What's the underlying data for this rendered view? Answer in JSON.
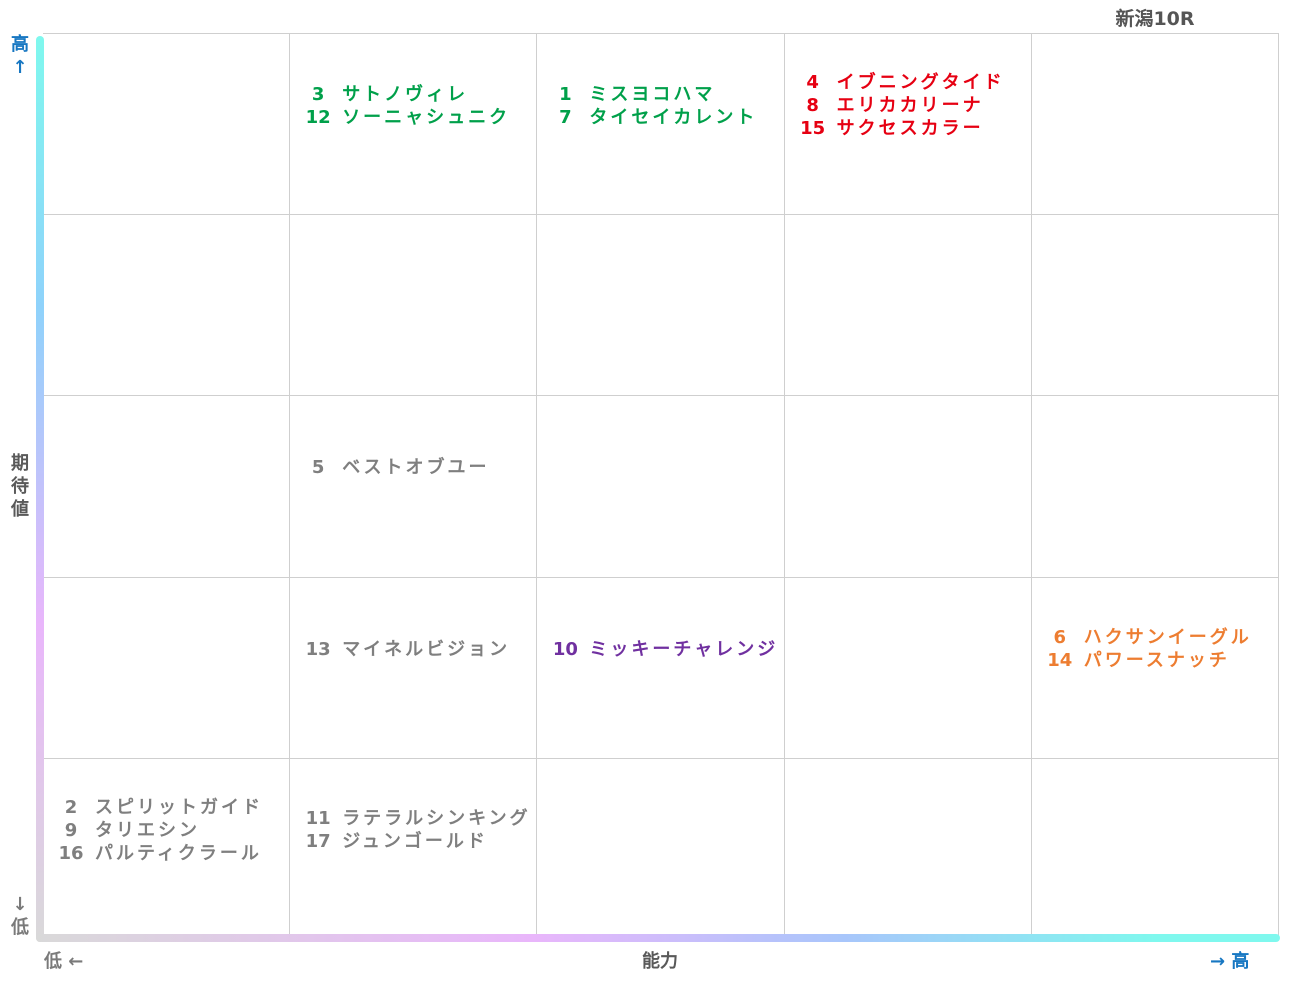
{
  "race_title": "新潟10R",
  "chart_data": {
    "type": "table",
    "x_axis": {
      "title": "能力",
      "low": "低 ←",
      "high": "→ 高"
    },
    "y_axis": {
      "title": "期待値",
      "low": "↓低",
      "high": "高↑"
    },
    "columns": 5,
    "rows": 5,
    "cells": [
      {
        "col": 1,
        "row": 4,
        "color": "#00a04a",
        "horses": [
          {
            "num": "3",
            "name": "サトノヴィレ"
          },
          {
            "num": "12",
            "name": "ソーニャシュニク"
          }
        ]
      },
      {
        "col": 2,
        "row": 4,
        "color": "#00a04a",
        "horses": [
          {
            "num": "1",
            "name": "ミスヨコハマ"
          },
          {
            "num": "7",
            "name": "タイセイカレント"
          }
        ]
      },
      {
        "col": 3,
        "row": 4,
        "color": "#e60012",
        "horses": [
          {
            "num": "4",
            "name": "イブニングタイド"
          },
          {
            "num": "8",
            "name": "エリカカリーナ"
          },
          {
            "num": "15",
            "name": "サクセスカラー"
          }
        ]
      },
      {
        "col": 1,
        "row": 2,
        "color": "#7f7f7f",
        "horses": [
          {
            "num": "5",
            "name": "ベストオブユー"
          }
        ]
      },
      {
        "col": 1,
        "row": 1,
        "color": "#7f7f7f",
        "horses": [
          {
            "num": "13",
            "name": "マイネルビジョン"
          }
        ]
      },
      {
        "col": 2,
        "row": 1,
        "color": "#7030a0",
        "horses": [
          {
            "num": "10",
            "name": "ミッキーチャレンジ"
          }
        ]
      },
      {
        "col": 4,
        "row": 1,
        "color": "#ed7d31",
        "horses": [
          {
            "num": "6",
            "name": "ハクサンイーグル"
          },
          {
            "num": "14",
            "name": "パワースナッチ"
          }
        ]
      },
      {
        "col": 0,
        "row": 0,
        "color": "#7f7f7f",
        "horses": [
          {
            "num": "2",
            "name": "スピリットガイド"
          },
          {
            "num": "9",
            "name": "タリエシン"
          },
          {
            "num": "16",
            "name": "パルティクラール"
          }
        ]
      },
      {
        "col": 1,
        "row": 0,
        "color": "#7f7f7f",
        "horses": [
          {
            "num": "11",
            "name": "ラテラルシンキング"
          },
          {
            "num": "17",
            "name": "ジュンゴールド"
          }
        ]
      }
    ]
  }
}
